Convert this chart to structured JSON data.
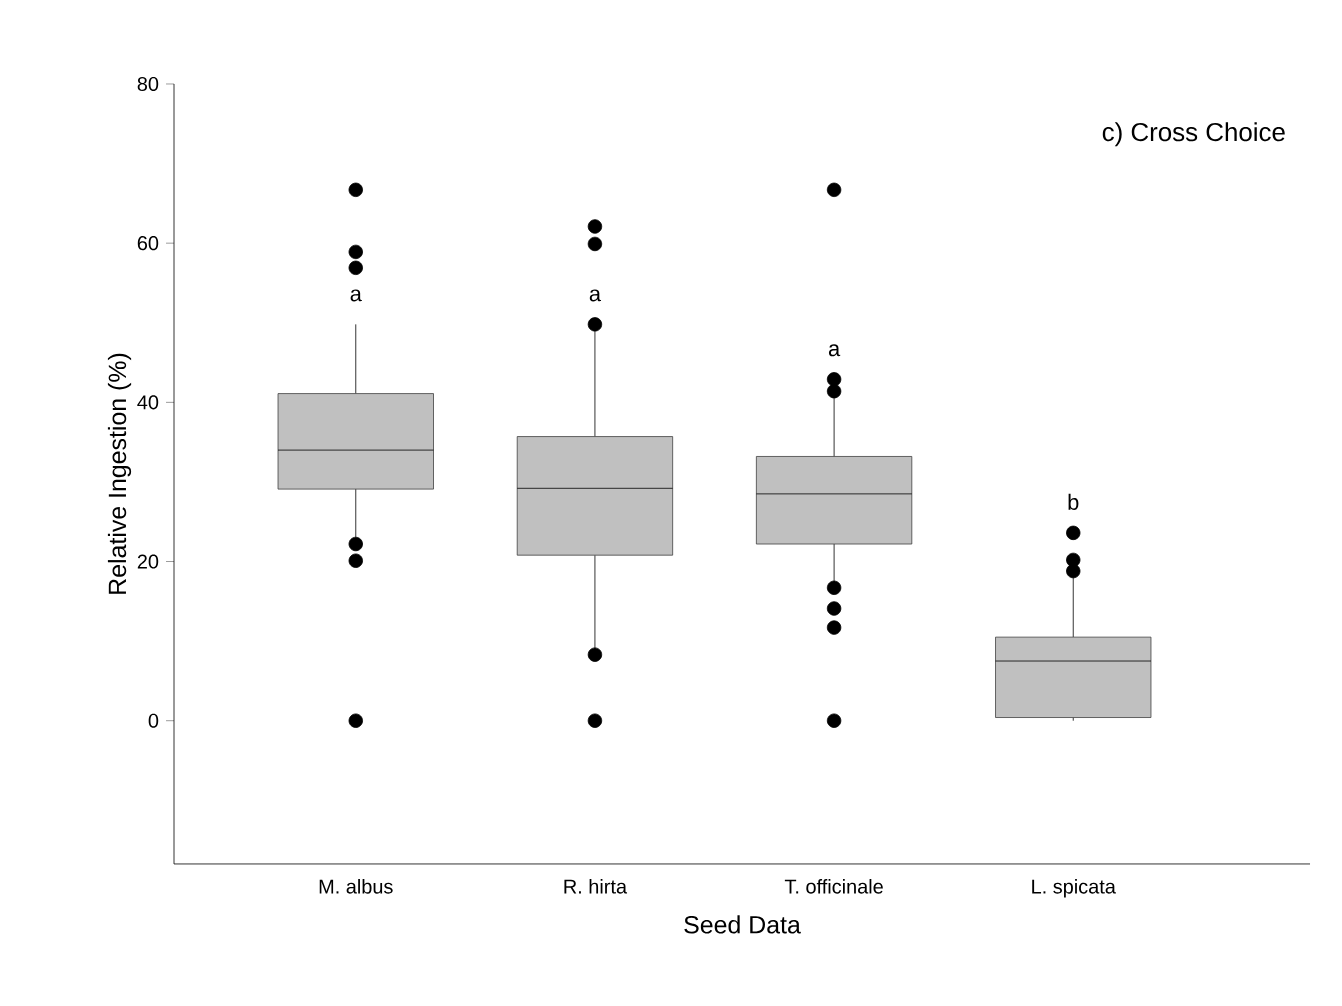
{
  "chart_data": {
    "type": "box",
    "title": "c) Cross Choice",
    "xlabel": "Seed Data",
    "ylabel": "Relative Ingestion (%)",
    "categories": [
      "M. albus",
      "R. hirta",
      "T. officinale",
      "L. spicata"
    ],
    "color": "#c0c0c0",
    "boxes": [
      {
        "low": 23,
        "q1": 29.1,
        "median": 34.0,
        "q3": 41.1,
        "high": 49.8,
        "outliers": [
          66.7,
          58.9,
          56.9,
          22.2,
          20.1,
          0
        ]
      },
      {
        "low": 8.3,
        "q1": 20.8,
        "median": 29.2,
        "q3": 35.7,
        "high": 49.8,
        "outliers": [
          62.1,
          59.9,
          49.8,
          8.3,
          0
        ]
      },
      {
        "low": 16.7,
        "q1": 22.2,
        "median": 28.5,
        "q3": 33.2,
        "high": 42.1,
        "outliers": [
          66.7,
          42.9,
          41.4,
          16.7,
          14.1,
          11.7,
          0
        ]
      },
      {
        "low": 0,
        "q1": 0.4,
        "median": 7.5,
        "q3": 10.5,
        "high": 19.4,
        "outliers": [
          23.6,
          20.2,
          18.8
        ]
      }
    ],
    "annotations": [
      "a",
      "a",
      "a",
      "b"
    ],
    "ylim": [
      -18,
      80
    ],
    "yticks": [
      0,
      20,
      40,
      60,
      80
    ],
    "grid": false,
    "marker": "circle"
  }
}
